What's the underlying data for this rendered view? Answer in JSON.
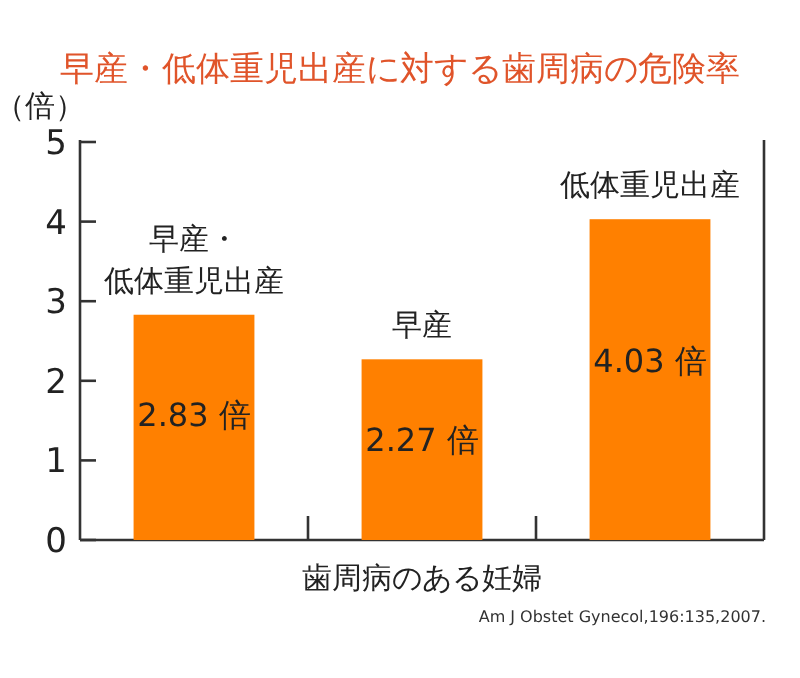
{
  "chart_data": {
    "type": "bar",
    "title": "早産・低体重児出産に対する歯周病の危険率",
    "xlabel": "歯周病のある妊婦",
    "ylabel": "（倍）",
    "categories": [
      "早産・低体重児出産",
      "早産",
      "低体重児出産"
    ],
    "values": [
      2.83,
      2.27,
      4.03
    ],
    "value_labels": [
      "2.83 倍",
      "2.27 倍",
      "4.03 倍"
    ],
    "color": "#ff8000",
    "ylim": [
      0,
      5
    ],
    "yticks": [
      0,
      1,
      2,
      3,
      4,
      5
    ],
    "grid": false,
    "annotations": [
      "Am J Obstet Gynecol,196:135,2007."
    ]
  }
}
